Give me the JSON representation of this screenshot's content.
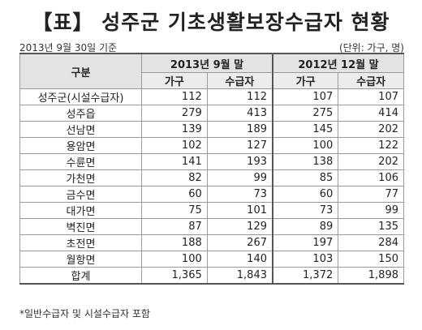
{
  "title": "【표】 성주군 기초생활보장수급자 현황",
  "date_note": "2013년 9월 30일 기준",
  "unit_note": "(단위: 가구, 명)",
  "headers": {
    "gubun": "구분",
    "period1": "2013년 9월 말",
    "period2": "2012년 12월 말",
    "households": "가구",
    "recipients": "수급자"
  },
  "rows": [
    {
      "name": "성주군(시설수급자)",
      "h2013": "112",
      "r2013": "112",
      "h2012": "107",
      "r2012": "107"
    },
    {
      "name": "성주읍",
      "h2013": "279",
      "r2013": "413",
      "h2012": "275",
      "r2012": "414"
    },
    {
      "name": "선남면",
      "h2013": "139",
      "r2013": "189",
      "h2012": "145",
      "r2012": "202"
    },
    {
      "name": "용암면",
      "h2013": "102",
      "r2013": "127",
      "h2012": "100",
      "r2012": "122"
    },
    {
      "name": "수륜면",
      "h2013": "141",
      "r2013": "193",
      "h2012": "138",
      "r2012": "202"
    },
    {
      "name": "가천면",
      "h2013": "82",
      "r2013": "99",
      "h2012": "85",
      "r2012": "106"
    },
    {
      "name": "금수면",
      "h2013": "60",
      "r2013": "73",
      "h2012": "60",
      "r2012": "77"
    },
    {
      "name": "대가면",
      "h2013": "75",
      "r2013": "101",
      "h2012": "73",
      "r2012": "99"
    },
    {
      "name": "벽진면",
      "h2013": "87",
      "r2013": "129",
      "h2012": "89",
      "r2012": "135"
    },
    {
      "name": "초전면",
      "h2013": "188",
      "r2013": "267",
      "h2012": "197",
      "r2012": "284"
    },
    {
      "name": "월항면",
      "h2013": "100",
      "r2013": "140",
      "h2012": "103",
      "r2012": "150"
    }
  ],
  "total": {
    "name": "합계",
    "h2013": "1,365",
    "r2013": "1,843",
    "h2012": "1,372",
    "r2012": "1,898"
  },
  "footnote": "*일반수급자 및 시설수급자 포함"
}
